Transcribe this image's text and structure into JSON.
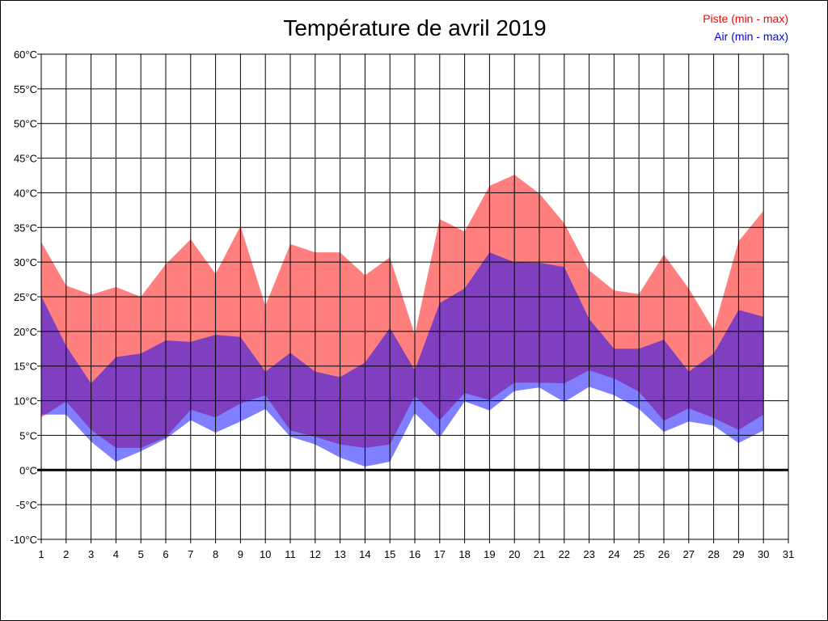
{
  "chart_data": {
    "type": "area",
    "title": "Température de avril 2019",
    "x": [
      1,
      2,
      3,
      4,
      5,
      6,
      7,
      8,
      9,
      10,
      11,
      12,
      13,
      14,
      15,
      16,
      17,
      18,
      19,
      20,
      21,
      22,
      23,
      24,
      25,
      26,
      27,
      28,
      29,
      30
    ],
    "x_ticks": [
      "1",
      "2",
      "3",
      "4",
      "5",
      "6",
      "7",
      "8",
      "9",
      "10",
      "11",
      "12",
      "13",
      "14",
      "15",
      "16",
      "17",
      "18",
      "19",
      "20",
      "21",
      "22",
      "23",
      "24",
      "25",
      "26",
      "27",
      "28",
      "29",
      "30",
      "31"
    ],
    "xlim": [
      1,
      31
    ],
    "y_ticks": [
      "60°C",
      "55°C",
      "50°C",
      "45°C",
      "40°C",
      "35°C",
      "30°C",
      "25°C",
      "20°C",
      "15°C",
      "10°C",
      "5°C",
      "0°C",
      "-5°C",
      "-10°C"
    ],
    "ylim": [
      -10,
      60
    ],
    "grid": true,
    "legend_position": "top-right",
    "series": [
      {
        "name": "Piste (min - max)",
        "color": "#ff0000",
        "min": [
          7.6,
          9.9,
          5.8,
          3.2,
          3.2,
          4.7,
          8.7,
          7.6,
          9.6,
          10.8,
          5.7,
          4.8,
          3.7,
          3.2,
          3.7,
          10.7,
          7.2,
          11.1,
          10.1,
          12.6,
          12.6,
          12.5,
          14.4,
          13.2,
          11.3,
          7.1,
          8.9,
          7.5,
          5.8,
          8.0
        ],
        "max": [
          32.9,
          26.6,
          25.3,
          26.4,
          25.0,
          29.7,
          33.3,
          28.3,
          35.2,
          23.7,
          32.6,
          31.4,
          31.4,
          28.1,
          30.7,
          19.5,
          36.2,
          34.4,
          41.0,
          42.6,
          39.9,
          35.6,
          28.8,
          25.9,
          25.4,
          31.1,
          26.2,
          20.2,
          33.0,
          37.4
        ]
      },
      {
        "name": "Air (min - max)",
        "color": "#0000ff",
        "min": [
          8.0,
          8.0,
          4.1,
          1.2,
          2.7,
          4.5,
          7.2,
          5.4,
          7.0,
          8.8,
          4.8,
          3.7,
          1.8,
          0.5,
          1.2,
          8.2,
          4.7,
          9.9,
          8.6,
          11.4,
          11.9,
          9.8,
          12.0,
          10.8,
          8.8,
          5.5,
          7.0,
          6.4,
          3.9,
          5.7
        ],
        "max": [
          25.1,
          17.9,
          12.5,
          16.3,
          16.8,
          18.7,
          18.5,
          19.5,
          19.2,
          14.2,
          16.9,
          14.2,
          13.4,
          15.5,
          20.5,
          14.4,
          24.1,
          26.2,
          31.4,
          30.0,
          29.9,
          29.3,
          21.8,
          17.5,
          17.5,
          18.8,
          14.2,
          16.8,
          23.1,
          22.1
        ]
      }
    ]
  }
}
